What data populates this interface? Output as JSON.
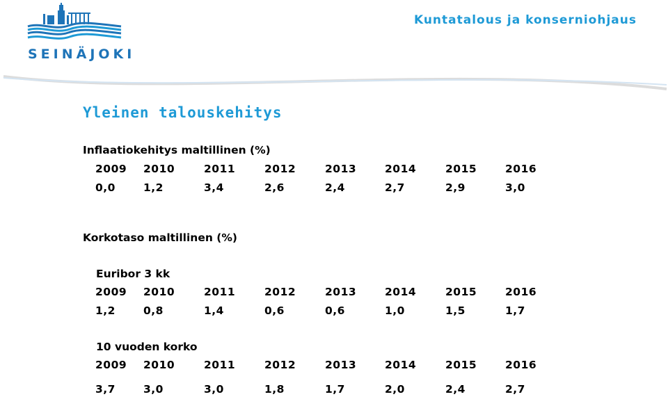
{
  "header": {
    "logo_text": "SEINÄJOKI",
    "title": "Kuntatalous ja konserniohjaus"
  },
  "page_title": "Yleinen talouskehitys",
  "inflation": {
    "heading": "Inflaatiokehitys maltillinen (%)",
    "years": [
      "2009",
      "2010",
      "2011",
      "2012",
      "2013",
      "2014",
      "2015",
      "2016"
    ],
    "values": [
      "0,0",
      "1,2",
      "3,4",
      "2,6",
      "2,4",
      "2,7",
      "2,9",
      "3,0"
    ]
  },
  "interest": {
    "heading": "Korkotaso maltillinen (%)",
    "euribor": {
      "label": "Euribor 3 kk",
      "years": [
        "2009",
        "2010",
        "2011",
        "2012",
        "2013",
        "2014",
        "2015",
        "2016"
      ],
      "values": [
        "1,2",
        "0,8",
        "1,4",
        "0,6",
        "0,6",
        "1,0",
        "1,5",
        "1,7"
      ]
    },
    "ten_year": {
      "label": "10 vuoden korko",
      "years": [
        "2009",
        "2010",
        "2011",
        "2012",
        "2013",
        "2014",
        "2015",
        "2016"
      ],
      "values": [
        "3,7",
        "3,0",
        "3,0",
        "1,8",
        "1,7",
        "2,0",
        "2,4",
        "2,7"
      ]
    }
  },
  "colors": {
    "brand_blue": "#1e74b8",
    "accent_blue": "#1e9ad6"
  }
}
